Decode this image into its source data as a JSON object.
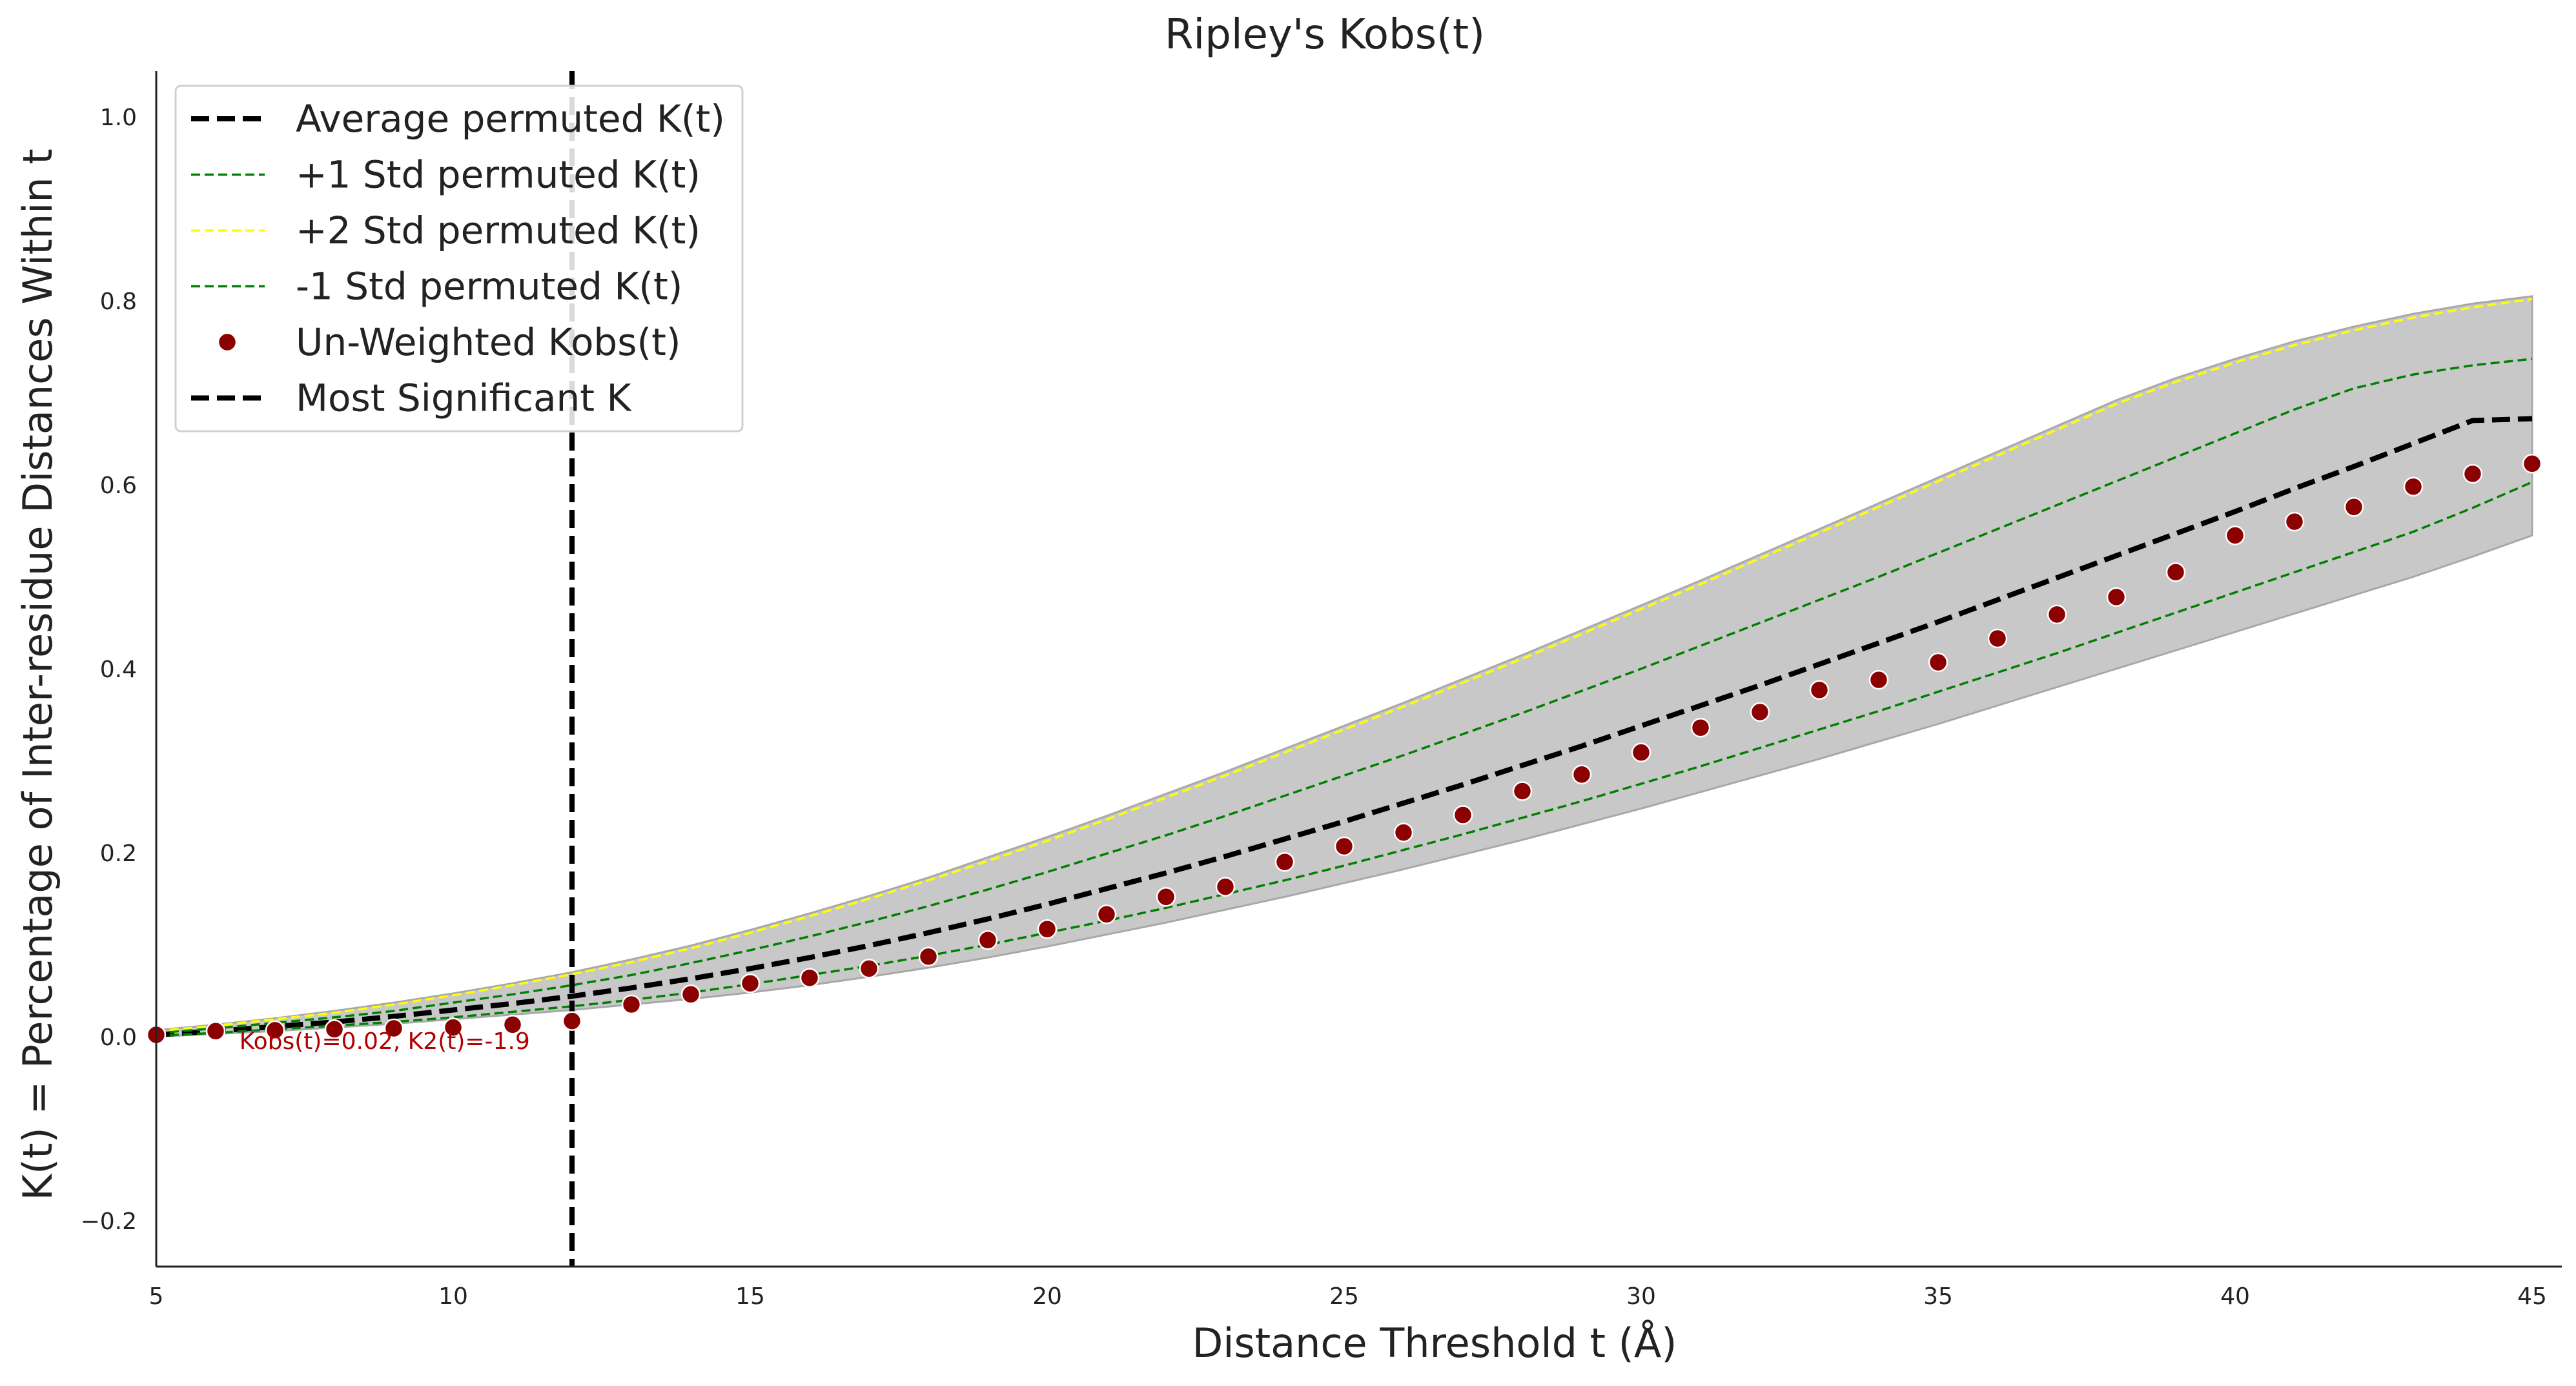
{
  "chart_data": {
    "type": "line",
    "title": "Ripley's Kobs(t)",
    "xlabel": "Distance Threshold t (Å)",
    "ylabel": "K(t) = Percentage of Inter-residue Distances Within t",
    "xlim": [
      5,
      45.5
    ],
    "ylim": [
      -0.25,
      1.05
    ],
    "xticks": [
      "5",
      "10",
      "15",
      "20",
      "25",
      "30",
      "35",
      "40",
      "45"
    ],
    "yticks": [
      "−0.2",
      "0.0",
      "0.2",
      "0.4",
      "0.6",
      "0.8",
      "1.0"
    ],
    "grid": false,
    "legend_position": "upper-left",
    "x": [
      5,
      6,
      7,
      8,
      9,
      10,
      11,
      12,
      13,
      14,
      15,
      16,
      17,
      18,
      19,
      20,
      21,
      22,
      23,
      24,
      25,
      26,
      27,
      28,
      29,
      30,
      31,
      32,
      33,
      34,
      35,
      36,
      37,
      38,
      39,
      40,
      41,
      42,
      43,
      44,
      45
    ],
    "series": [
      {
        "name": "Average permuted K(t)",
        "style": "dashed",
        "color": "#000000",
        "values": [
          0.002,
          0.006,
          0.011,
          0.016,
          0.022,
          0.029,
          0.036,
          0.044,
          0.053,
          0.063,
          0.074,
          0.086,
          0.099,
          0.113,
          0.128,
          0.144,
          0.161,
          0.178,
          0.196,
          0.215,
          0.234,
          0.254,
          0.274,
          0.295,
          0.316,
          0.338,
          0.36,
          0.382,
          0.405,
          0.428,
          0.451,
          0.475,
          0.499,
          0.523,
          0.547,
          0.571,
          0.596,
          0.62,
          0.645,
          0.67,
          0.672
        ]
      },
      {
        "name": "+1 Std permuted K(t)",
        "style": "dashed",
        "color": "#008000",
        "values": [
          0.004,
          0.009,
          0.015,
          0.021,
          0.028,
          0.037,
          0.046,
          0.056,
          0.067,
          0.08,
          0.094,
          0.109,
          0.125,
          0.142,
          0.16,
          0.179,
          0.199,
          0.219,
          0.24,
          0.262,
          0.284,
          0.306,
          0.329,
          0.352,
          0.376,
          0.4,
          0.425,
          0.45,
          0.475,
          0.5,
          0.526,
          0.552,
          0.578,
          0.604,
          0.63,
          0.656,
          0.682,
          0.705,
          0.72,
          0.73,
          0.737
        ]
      },
      {
        "name": "+2 Std permuted K(t)",
        "style": "dashed",
        "color": "#ffff00",
        "values": [
          0.006,
          0.012,
          0.019,
          0.026,
          0.035,
          0.045,
          0.056,
          0.068,
          0.081,
          0.096,
          0.113,
          0.131,
          0.15,
          0.17,
          0.191,
          0.213,
          0.236,
          0.26,
          0.284,
          0.309,
          0.334,
          0.359,
          0.385,
          0.411,
          0.438,
          0.465,
          0.492,
          0.52,
          0.548,
          0.576,
          0.604,
          0.632,
          0.66,
          0.688,
          0.712,
          0.733,
          0.752,
          0.768,
          0.782,
          0.793,
          0.802
        ]
      },
      {
        "name": "-1 Std permuted K(t)",
        "style": "dashed",
        "color": "#008000",
        "values": [
          0.001,
          0.004,
          0.008,
          0.012,
          0.016,
          0.021,
          0.027,
          0.033,
          0.04,
          0.048,
          0.057,
          0.067,
          0.077,
          0.088,
          0.1,
          0.113,
          0.126,
          0.14,
          0.155,
          0.17,
          0.186,
          0.203,
          0.22,
          0.238,
          0.256,
          0.275,
          0.294,
          0.314,
          0.334,
          0.354,
          0.375,
          0.396,
          0.417,
          0.439,
          0.461,
          0.483,
          0.505,
          0.527,
          0.549,
          0.575,
          0.603
        ]
      },
      {
        "name": "Un-Weighted Kobs(t)",
        "style": "scatter",
        "color": "#8b0000",
        "values": [
          0.002,
          0.006,
          0.007,
          0.008,
          0.009,
          0.01,
          0.013,
          0.017,
          0.035,
          0.046,
          0.058,
          0.064,
          0.074,
          0.087,
          0.105,
          0.117,
          0.133,
          0.152,
          0.163,
          0.19,
          0.207,
          0.222,
          0.241,
          0.267,
          0.285,
          0.309,
          0.336,
          0.353,
          0.377,
          0.388,
          0.407,
          0.433,
          0.459,
          0.478,
          0.505,
          0.545,
          0.56,
          0.576,
          0.598,
          0.612,
          0.623
        ]
      },
      {
        "name": "Most Significant K",
        "style": "dashed-vertical",
        "color": "#000000",
        "x_value": 12
      }
    ],
    "band": {
      "name": "permuted range",
      "color": "#c8c8c8",
      "lower": [
        0.0,
        0.003,
        0.006,
        0.01,
        0.014,
        0.019,
        0.024,
        0.029,
        0.035,
        0.041,
        0.048,
        0.056,
        0.065,
        0.075,
        0.086,
        0.098,
        0.111,
        0.124,
        0.138,
        0.152,
        0.167,
        0.182,
        0.198,
        0.214,
        0.231,
        0.248,
        0.266,
        0.284,
        0.302,
        0.321,
        0.34,
        0.36,
        0.38,
        0.4,
        0.42,
        0.44,
        0.46,
        0.48,
        0.5,
        0.522,
        0.545
      ],
      "upper": [
        0.007,
        0.013,
        0.02,
        0.028,
        0.037,
        0.047,
        0.058,
        0.07,
        0.084,
        0.099,
        0.116,
        0.134,
        0.153,
        0.173,
        0.195,
        0.217,
        0.24,
        0.264,
        0.288,
        0.313,
        0.338,
        0.363,
        0.389,
        0.415,
        0.442,
        0.469,
        0.496,
        0.524,
        0.552,
        0.58,
        0.608,
        0.636,
        0.664,
        0.692,
        0.716,
        0.737,
        0.756,
        0.772,
        0.786,
        0.797,
        0.805
      ]
    },
    "annotation": {
      "text": "Kobs(t)=0.02, K2(t)=-1.9",
      "x": 6.4,
      "y": -0.005
    }
  }
}
